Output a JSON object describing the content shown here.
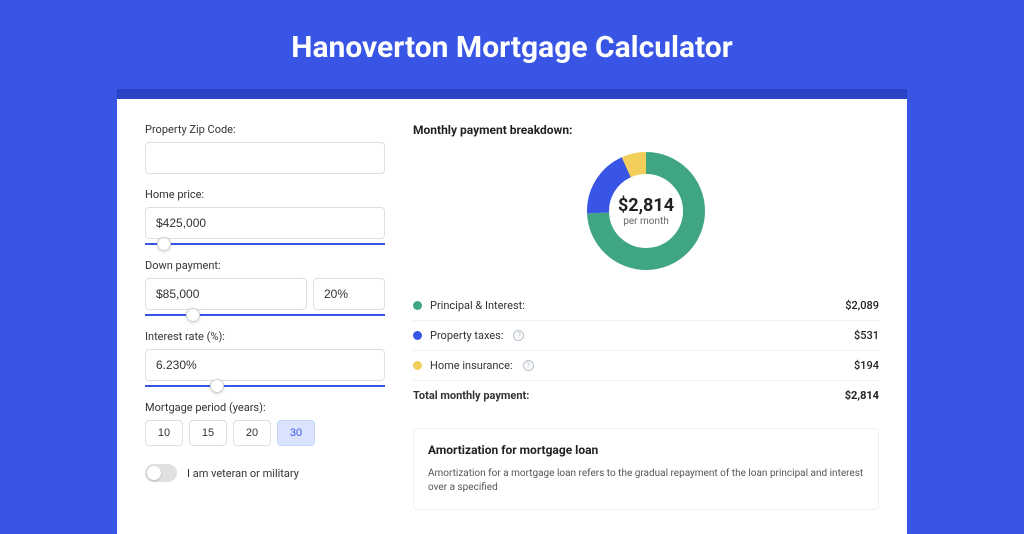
{
  "page": {
    "title": "Hanoverton Mortgage Calculator",
    "background_color": "#3955e5",
    "card_border_top_color": "#2a42c6"
  },
  "form": {
    "zip": {
      "label": "Property Zip Code:",
      "value": ""
    },
    "home_price": {
      "label": "Home price:",
      "value": "$425,000",
      "slider_pct": 8
    },
    "down_payment": {
      "label": "Down payment:",
      "value": "$85,000",
      "percent": "20%",
      "slider_pct": 20
    },
    "interest_rate": {
      "label": "Interest rate (%):",
      "value": "6.230%",
      "slider_pct": 30
    },
    "period": {
      "label": "Mortgage period (years):",
      "options": [
        "10",
        "15",
        "20",
        "30"
      ],
      "selected": "30"
    },
    "veteran": {
      "label": "I am veteran or military",
      "on": false
    }
  },
  "breakdown": {
    "title": "Monthly payment breakdown:",
    "center_amount": "$2,814",
    "center_sub": "per month",
    "donut": {
      "radius": 48,
      "stroke_width": 22,
      "slices": [
        {
          "key": "principal_interest",
          "value": 2089,
          "color": "#40a582"
        },
        {
          "key": "property_taxes",
          "value": 531,
          "color": "#3955e5"
        },
        {
          "key": "home_insurance",
          "value": 194,
          "color": "#f2cf5b"
        }
      ]
    },
    "rows": [
      {
        "label": "Principal & Interest:",
        "value": "$2,089",
        "color": "#40a582",
        "info": false
      },
      {
        "label": "Property taxes:",
        "value": "$531",
        "color": "#3955e5",
        "info": true
      },
      {
        "label": "Home insurance:",
        "value": "$194",
        "color": "#f2cf5b",
        "info": true
      }
    ],
    "total": {
      "label": "Total monthly payment:",
      "value": "$2,814"
    }
  },
  "amortization": {
    "title": "Amortization for mortgage loan",
    "text": "Amortization for a mortgage loan refers to the gradual repayment of the loan principal and interest over a specified"
  }
}
